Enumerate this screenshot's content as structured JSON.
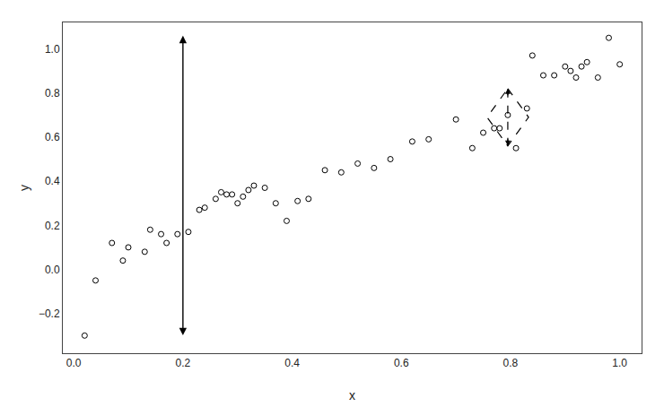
{
  "chart_data": {
    "type": "scatter",
    "xlabel": "x",
    "ylabel": "y",
    "xlim": [
      -0.02,
      1.04
    ],
    "ylim": [
      -0.38,
      1.12
    ],
    "xticks": [
      {
        "value": 0.0,
        "label": "0.0"
      },
      0.2,
      0.4,
      0.6,
      0.8,
      {
        "value": 1.0,
        "label": "1.0"
      }
    ],
    "yticks": [
      {
        "value": -0.2,
        "label": "−0.2"
      },
      {
        "value": 0.0,
        "label": "0.0"
      },
      0.2,
      0.4,
      0.6,
      0.8,
      {
        "value": 1.0,
        "label": "1.0"
      }
    ],
    "grid": false,
    "marker": "circle-open",
    "color": "black",
    "x": [
      0.02,
      0.04,
      0.07,
      0.09,
      0.1,
      0.13,
      0.14,
      0.16,
      0.17,
      0.19,
      0.21,
      0.23,
      0.24,
      0.26,
      0.27,
      0.28,
      0.29,
      0.3,
      0.31,
      0.32,
      0.33,
      0.35,
      0.37,
      0.39,
      0.41,
      0.43,
      0.46,
      0.49,
      0.52,
      0.55,
      0.58,
      0.62,
      0.65,
      0.7,
      0.73,
      0.75,
      0.77,
      0.78,
      0.795,
      0.81,
      0.83,
      0.84,
      0.86,
      0.88,
      0.9,
      0.91,
      0.92,
      0.93,
      0.94,
      0.96,
      0.98,
      1.0
    ],
    "values": [
      -0.3,
      -0.05,
      0.12,
      0.04,
      0.1,
      0.08,
      0.18,
      0.16,
      0.12,
      0.16,
      0.17,
      0.27,
      0.28,
      0.32,
      0.35,
      0.34,
      0.34,
      0.3,
      0.33,
      0.36,
      0.38,
      0.37,
      0.3,
      0.22,
      0.31,
      0.32,
      0.45,
      0.44,
      0.48,
      0.46,
      0.5,
      0.58,
      0.59,
      0.68,
      0.55,
      0.62,
      0.64,
      0.64,
      0.7,
      0.55,
      0.73,
      0.97,
      0.88,
      0.88,
      0.92,
      0.9,
      0.87,
      0.92,
      0.94,
      0.87,
      1.05,
      0.93
    ],
    "arrow": {
      "x": 0.2,
      "y_top": 1.06,
      "y_bottom": -0.305
    },
    "dashed_diamond": {
      "x": 0.795,
      "y_top": 0.82,
      "y_bottom": 0.56,
      "y_mid": 0.69,
      "x_half": 0.038
    }
  }
}
